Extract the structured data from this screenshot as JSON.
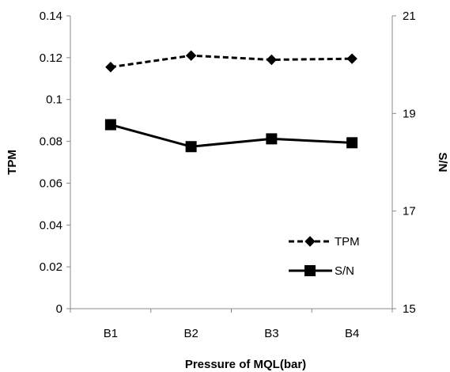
{
  "chart_data": {
    "type": "line",
    "categories": [
      "B1",
      "B2",
      "B3",
      "B4"
    ],
    "xlabel": "Pressure of MQL(bar)",
    "ylabel": "TPM",
    "y2label": "S/N",
    "ylim": [
      0,
      0.14
    ],
    "y2lim": [
      15,
      21
    ],
    "yticks": [
      "0",
      "0.02",
      "0.04",
      "0.06",
      "0.08",
      "0.1",
      "0.12",
      "0.14"
    ],
    "y2ticks": [
      "15",
      "17",
      "19",
      "21"
    ],
    "grid": false,
    "legend_position": "bottom-right",
    "series": [
      {
        "name": "TPM",
        "axis": "left",
        "marker": "diamond",
        "line_style": "dashed",
        "color": "#000000",
        "values": [
          0.1155,
          0.121,
          0.119,
          0.1195
        ]
      },
      {
        "name": "S/N",
        "axis": "right",
        "marker": "square",
        "line_style": "solid",
        "color": "#000000",
        "values": [
          18.77,
          18.32,
          18.48,
          18.4
        ]
      }
    ]
  }
}
